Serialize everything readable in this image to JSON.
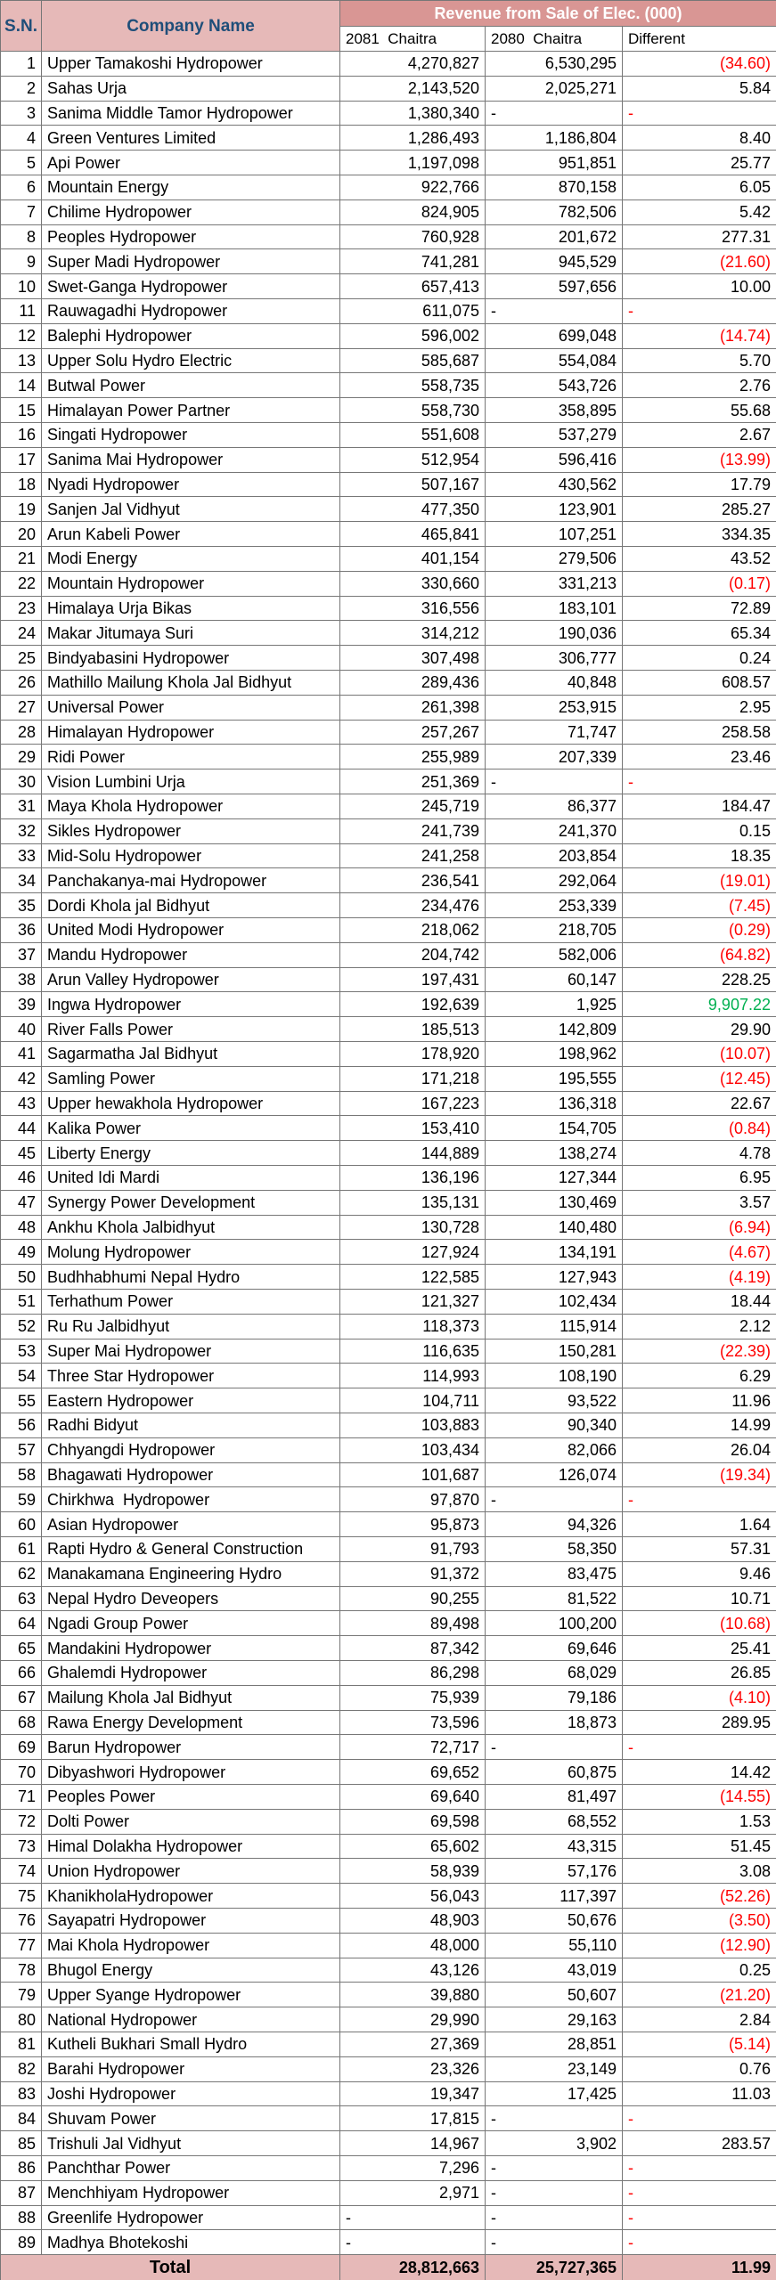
{
  "header": {
    "sn": "S.N.",
    "company": "Company Name",
    "revenue": "Revenue from Sale of Elec. (000)",
    "columns": [
      "2081  Chaitra",
      "2080  Chaitra",
      "Different"
    ]
  },
  "rows": [
    [
      1,
      "Upper Tamakoshi Hydropower",
      "4,270,827",
      "6,530,295",
      "(34.60)",
      "#ff0000"
    ],
    [
      2,
      "Sahas Urja",
      "2,143,520",
      "2,025,271",
      "5.84",
      "#000000"
    ],
    [
      3,
      "Sanima Middle Tamor Hydropower",
      "1,380,340",
      "-",
      "-",
      "#ff0000"
    ],
    [
      4,
      "Green Ventures Limited",
      "1,286,493",
      "1,186,804",
      "8.40",
      "#000000"
    ],
    [
      5,
      "Api Power",
      "1,197,098",
      "951,851",
      "25.77",
      "#000000"
    ],
    [
      6,
      "Mountain Energy",
      "922,766",
      "870,158",
      "6.05",
      "#000000"
    ],
    [
      7,
      "Chilime Hydropower",
      "824,905",
      "782,506",
      "5.42",
      "#000000"
    ],
    [
      8,
      "Peoples Hydropower",
      "760,928",
      "201,672",
      "277.31",
      "#000000"
    ],
    [
      9,
      "Super Madi Hydropower",
      "741,281",
      "945,529",
      "(21.60)",
      "#ff0000"
    ],
    [
      10,
      "Swet-Ganga Hydropower",
      "657,413",
      "597,656",
      "10.00",
      "#000000"
    ],
    [
      11,
      "Rauwagadhi Hydropower",
      "611,075",
      "-",
      "-",
      "#ff0000"
    ],
    [
      12,
      "Balephi Hydropower",
      "596,002",
      "699,048",
      "(14.74)",
      "#ff0000"
    ],
    [
      13,
      "Upper Solu Hydro Electric",
      "585,687",
      "554,084",
      "5.70",
      "#000000"
    ],
    [
      14,
      "Butwal Power",
      "558,735",
      "543,726",
      "2.76",
      "#000000"
    ],
    [
      15,
      "Himalayan Power Partner",
      "558,730",
      "358,895",
      "55.68",
      "#000000"
    ],
    [
      16,
      "Singati Hydropower",
      "551,608",
      "537,279",
      "2.67",
      "#000000"
    ],
    [
      17,
      "Sanima Mai Hydropower",
      "512,954",
      "596,416",
      "(13.99)",
      "#ff0000"
    ],
    [
      18,
      "Nyadi Hydropower",
      "507,167",
      "430,562",
      "17.79",
      "#000000"
    ],
    [
      19,
      "Sanjen Jal Vidhyut",
      "477,350",
      "123,901",
      "285.27",
      "#000000"
    ],
    [
      20,
      "Arun Kabeli Power",
      "465,841",
      "107,251",
      "334.35",
      "#000000"
    ],
    [
      21,
      "Modi Energy",
      "401,154",
      "279,506",
      "43.52",
      "#000000"
    ],
    [
      22,
      "Mountain Hydropower",
      "330,660",
      "331,213",
      "(0.17)",
      "#ff0000"
    ],
    [
      23,
      "Himalaya Urja Bikas",
      "316,556",
      "183,101",
      "72.89",
      "#000000"
    ],
    [
      24,
      "Makar Jitumaya Suri",
      "314,212",
      "190,036",
      "65.34",
      "#000000"
    ],
    [
      25,
      "Bindyabasini Hydropower",
      "307,498",
      "306,777",
      "0.24",
      "#000000"
    ],
    [
      26,
      "Mathillo Mailung Khola Jal Bidhyut",
      "289,436",
      "40,848",
      "608.57",
      "#000000"
    ],
    [
      27,
      "Universal Power",
      "261,398",
      "253,915",
      "2.95",
      "#000000"
    ],
    [
      28,
      "Himalayan Hydropower",
      "257,267",
      "71,747",
      "258.58",
      "#000000"
    ],
    [
      29,
      "Ridi Power",
      "255,989",
      "207,339",
      "23.46",
      "#000000"
    ],
    [
      30,
      "Vision Lumbini Urja",
      "251,369",
      "-",
      "-",
      "#ff0000"
    ],
    [
      31,
      "Maya Khola Hydropower",
      "245,719",
      "86,377",
      "184.47",
      "#000000"
    ],
    [
      32,
      "Sikles Hydropower",
      "241,739",
      "241,370",
      "0.15",
      "#000000"
    ],
    [
      33,
      "Mid-Solu Hydropower",
      "241,258",
      "203,854",
      "18.35",
      "#000000"
    ],
    [
      34,
      "Panchakanya-mai Hydropower",
      "236,541",
      "292,064",
      "(19.01)",
      "#ff0000"
    ],
    [
      35,
      "Dordi Khola jal Bidhyut",
      "234,476",
      "253,339",
      "(7.45)",
      "#ff0000"
    ],
    [
      36,
      "United Modi Hydropower",
      "218,062",
      "218,705",
      "(0.29)",
      "#ff0000"
    ],
    [
      37,
      "Mandu Hydropower",
      "204,742",
      "582,006",
      "(64.82)",
      "#ff0000"
    ],
    [
      38,
      "Arun Valley Hydropower",
      "197,431",
      "60,147",
      "228.25",
      "#000000"
    ],
    [
      39,
      "Ingwa Hydropower",
      "192,639",
      "1,925",
      "9,907.22",
      "#00b050"
    ],
    [
      40,
      "River Falls Power",
      "185,513",
      "142,809",
      "29.90",
      "#000000"
    ],
    [
      41,
      "Sagarmatha Jal Bidhyut",
      "178,920",
      "198,962",
      "(10.07)",
      "#ff0000"
    ],
    [
      42,
      "Samling Power",
      "171,218",
      "195,555",
      "(12.45)",
      "#ff0000"
    ],
    [
      43,
      "Upper hewakhola Hydropower",
      "167,223",
      "136,318",
      "22.67",
      "#000000"
    ],
    [
      44,
      "Kalika Power",
      "153,410",
      "154,705",
      "(0.84)",
      "#ff0000"
    ],
    [
      45,
      "Liberty Energy",
      "144,889",
      "138,274",
      "4.78",
      "#000000"
    ],
    [
      46,
      "United Idi Mardi",
      "136,196",
      "127,344",
      "6.95",
      "#000000"
    ],
    [
      47,
      "Synergy Power Development",
      "135,131",
      "130,469",
      "3.57",
      "#000000"
    ],
    [
      48,
      "Ankhu Khola Jalbidhyut",
      "130,728",
      "140,480",
      "(6.94)",
      "#ff0000"
    ],
    [
      49,
      "Molung Hydropower",
      "127,924",
      "134,191",
      "(4.67)",
      "#ff0000"
    ],
    [
      50,
      "Budhhabhumi Nepal Hydro",
      "122,585",
      "127,943",
      "(4.19)",
      "#ff0000"
    ],
    [
      51,
      "Terhathum Power",
      "121,327",
      "102,434",
      "18.44",
      "#000000"
    ],
    [
      52,
      "Ru Ru Jalbidhyut",
      "118,373",
      "115,914",
      "2.12",
      "#000000"
    ],
    [
      53,
      "Super Mai Hydropower",
      "116,635",
      "150,281",
      "(22.39)",
      "#ff0000"
    ],
    [
      54,
      "Three Star Hydropower",
      "114,993",
      "108,190",
      "6.29",
      "#000000"
    ],
    [
      55,
      "Eastern Hydropower",
      "104,711",
      "93,522",
      "11.96",
      "#000000"
    ],
    [
      56,
      "Radhi Bidyut",
      "103,883",
      "90,340",
      "14.99",
      "#000000"
    ],
    [
      57,
      "Chhyangdi Hydropower",
      "103,434",
      "82,066",
      "26.04",
      "#000000"
    ],
    [
      58,
      "Bhagawati Hydropower",
      "101,687",
      "126,074",
      "(19.34)",
      "#ff0000"
    ],
    [
      59,
      "Chirkhwa  Hydropower",
      "97,870",
      "-",
      "-",
      "#ff0000"
    ],
    [
      60,
      "Asian Hydropower",
      "95,873",
      "94,326",
      "1.64",
      "#000000"
    ],
    [
      61,
      "Rapti Hydro & General Construction",
      "91,793",
      "58,350",
      "57.31",
      "#000000"
    ],
    [
      62,
      "Manakamana Engineering Hydro",
      "91,372",
      "83,475",
      "9.46",
      "#000000"
    ],
    [
      63,
      "Nepal Hydro Deveopers",
      "90,255",
      "81,522",
      "10.71",
      "#000000"
    ],
    [
      64,
      "Ngadi Group Power",
      "89,498",
      "100,200",
      "(10.68)",
      "#ff0000"
    ],
    [
      65,
      "Mandakini Hydropower",
      "87,342",
      "69,646",
      "25.41",
      "#000000"
    ],
    [
      66,
      "Ghalemdi Hydropower",
      "86,298",
      "68,029",
      "26.85",
      "#000000"
    ],
    [
      67,
      "Mailung Khola Jal Bidhyut",
      "75,939",
      "79,186",
      "(4.10)",
      "#ff0000"
    ],
    [
      68,
      "Rawa Energy Development",
      "73,596",
      "18,873",
      "289.95",
      "#000000"
    ],
    [
      69,
      "Barun Hydropower",
      "72,717",
      "-",
      "-",
      "#ff0000"
    ],
    [
      70,
      "Dibyashwori Hydropower",
      "69,652",
      "60,875",
      "14.42",
      "#000000"
    ],
    [
      71,
      "Peoples Power",
      "69,640",
      "81,497",
      "(14.55)",
      "#ff0000"
    ],
    [
      72,
      "Dolti Power",
      "69,598",
      "68,552",
      "1.53",
      "#000000"
    ],
    [
      73,
      "Himal Dolakha Hydropower",
      "65,602",
      "43,315",
      "51.45",
      "#000000"
    ],
    [
      74,
      "Union Hydropower",
      "58,939",
      "57,176",
      "3.08",
      "#000000"
    ],
    [
      75,
      "KhanikholaHydropower",
      "56,043",
      "117,397",
      "(52.26)",
      "#ff0000"
    ],
    [
      76,
      "Sayapatri Hydropower",
      "48,903",
      "50,676",
      "(3.50)",
      "#ff0000"
    ],
    [
      77,
      "Mai Khola Hydropower",
      "48,000",
      "55,110",
      "(12.90)",
      "#ff0000"
    ],
    [
      78,
      "Bhugol Energy",
      "43,126",
      "43,019",
      "0.25",
      "#000000"
    ],
    [
      79,
      "Upper Syange Hydropower",
      "39,880",
      "50,607",
      "(21.20)",
      "#ff0000"
    ],
    [
      80,
      "National Hydropower",
      "29,990",
      "29,163",
      "2.84",
      "#000000"
    ],
    [
      81,
      "Kutheli Bukhari Small Hydro",
      "27,369",
      "28,851",
      "(5.14)",
      "#ff0000"
    ],
    [
      82,
      "Barahi Hydropower",
      "23,326",
      "23,149",
      "0.76",
      "#000000"
    ],
    [
      83,
      "Joshi Hydropower",
      "19,347",
      "17,425",
      "11.03",
      "#000000"
    ],
    [
      84,
      "Shuvam Power",
      "17,815",
      "-",
      "-",
      "#ff0000"
    ],
    [
      85,
      "Trishuli Jal Vidhyut",
      "14,967",
      "3,902",
      "283.57",
      "#000000"
    ],
    [
      86,
      "Panchthar Power",
      "7,296",
      "-",
      "-",
      "#ff0000"
    ],
    [
      87,
      "Menchhiyam Hydropower",
      "2,971",
      "-",
      "-",
      "#ff0000"
    ],
    [
      88,
      "Greenlife Hydropower",
      "-",
      "-",
      "-",
      "#ff0000"
    ],
    [
      89,
      "Madhya Bhotekoshi",
      "-",
      "-",
      "-",
      "#ff0000"
    ]
  ],
  "total": {
    "label": "Total",
    "values": [
      "28,812,663",
      "25,727,365",
      "11.99"
    ]
  }
}
